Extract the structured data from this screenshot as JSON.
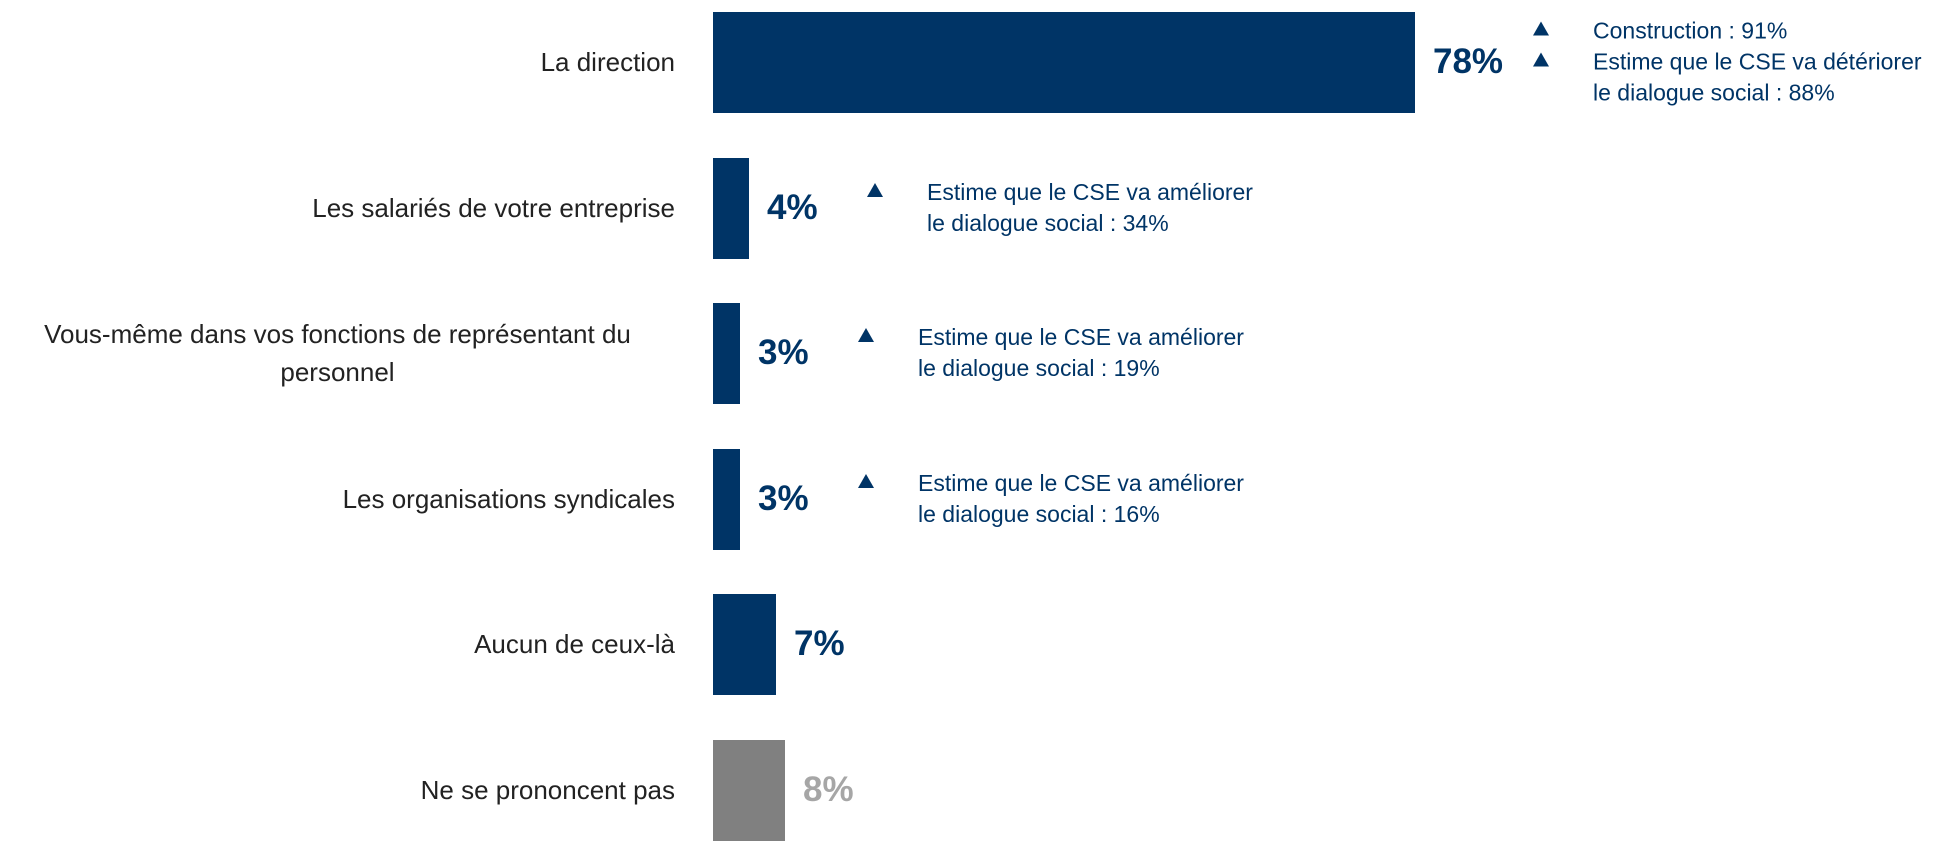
{
  "chart_data": {
    "type": "bar",
    "orientation": "horizontal",
    "categories": [
      "La direction",
      "Les salariés de votre entreprise",
      "Vous-même dans vos fonctions de représentant du personnel",
      "Les organisations syndicales",
      "Aucun de ceux-là",
      "Ne se prononcent pas"
    ],
    "values": [
      78,
      4,
      3,
      3,
      7,
      8
    ],
    "value_labels": [
      "78%",
      "4%",
      "3%",
      "3%",
      "7%",
      "8%"
    ],
    "colors": [
      "#003466",
      "#003466",
      "#003466",
      "#003466",
      "#003466",
      "#808080"
    ],
    "label_colors": [
      "#003466",
      "#003466",
      "#003466",
      "#003466",
      "#003466",
      "#a6a6a6"
    ],
    "annotations": [
      [
        "Construction : 91%",
        "Estime que le CSE va détériorer le dialogue social : 88%"
      ],
      [
        "Estime que le CSE va améliorer le dialogue social : 34%"
      ],
      [
        "Estime que le CSE va améliorer le dialogue social : 19%"
      ],
      [
        "Estime que le CSE va améliorer le dialogue social : 16%"
      ],
      [],
      []
    ]
  }
}
